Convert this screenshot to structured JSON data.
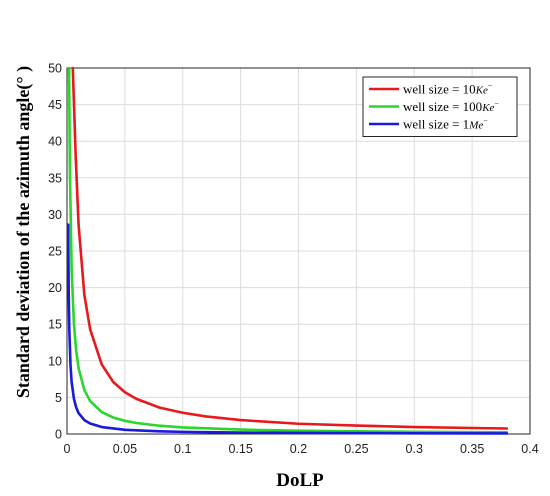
{
  "chart_data": {
    "type": "line",
    "xlabel": "DoLP",
    "ylabel": "Standard deviation of the azimuth angle(° )",
    "xlim": [
      0,
      0.4
    ],
    "ylim": [
      0,
      50
    ],
    "xticks": [
      "0",
      "0.05",
      "0.1",
      "0.15",
      "0.2",
      "0.25",
      "0.3",
      "0.35",
      "0.4"
    ],
    "yticks": [
      "0",
      "5",
      "10",
      "15",
      "20",
      "25",
      "30",
      "35",
      "40",
      "45",
      "50"
    ],
    "grid": true,
    "legend_position": "top-right",
    "series": [
      {
        "legend_prefix": "well size = 10",
        "legend_unit": "Ke",
        "legend_sup": "−",
        "color": "#e8191b",
        "x": [
          0.005,
          0.0075,
          0.01,
          0.015,
          0.02,
          0.03,
          0.04,
          0.05,
          0.06,
          0.08,
          0.1,
          0.12,
          0.15,
          0.2,
          0.25,
          0.3,
          0.35,
          0.38
        ],
        "y": [
          50,
          38,
          28.6,
          19,
          14.3,
          9.5,
          7.1,
          5.7,
          4.8,
          3.6,
          2.9,
          2.4,
          1.9,
          1.4,
          1.15,
          0.95,
          0.82,
          0.75
        ]
      },
      {
        "legend_prefix": "well size = 100",
        "legend_unit": "Ke",
        "legend_sup": "−",
        "color": "#2bd62b",
        "x": [
          0.0018,
          0.0025,
          0.004,
          0.006,
          0.008,
          0.01,
          0.015,
          0.02,
          0.03,
          0.04,
          0.05,
          0.06,
          0.08,
          0.1,
          0.15,
          0.2,
          0.25,
          0.3,
          0.38
        ],
        "y": [
          50,
          36,
          22.5,
          15,
          11.3,
          9,
          6,
          4.5,
          3,
          2.25,
          1.8,
          1.5,
          1.13,
          0.9,
          0.6,
          0.45,
          0.36,
          0.3,
          0.24
        ]
      },
      {
        "legend_prefix": "well size = 1",
        "legend_unit": "Me",
        "legend_sup": "−",
        "color": "#1a1adb",
        "x": [
          0.001,
          0.0015,
          0.002,
          0.003,
          0.004,
          0.006,
          0.008,
          0.01,
          0.015,
          0.02,
          0.03,
          0.05,
          0.08,
          0.1,
          0.15,
          0.2,
          0.3,
          0.38
        ],
        "y": [
          28.6,
          19,
          14.3,
          9.5,
          7.1,
          4.8,
          3.6,
          2.86,
          1.9,
          1.43,
          0.95,
          0.57,
          0.36,
          0.29,
          0.19,
          0.14,
          0.1,
          0.08
        ]
      }
    ]
  }
}
